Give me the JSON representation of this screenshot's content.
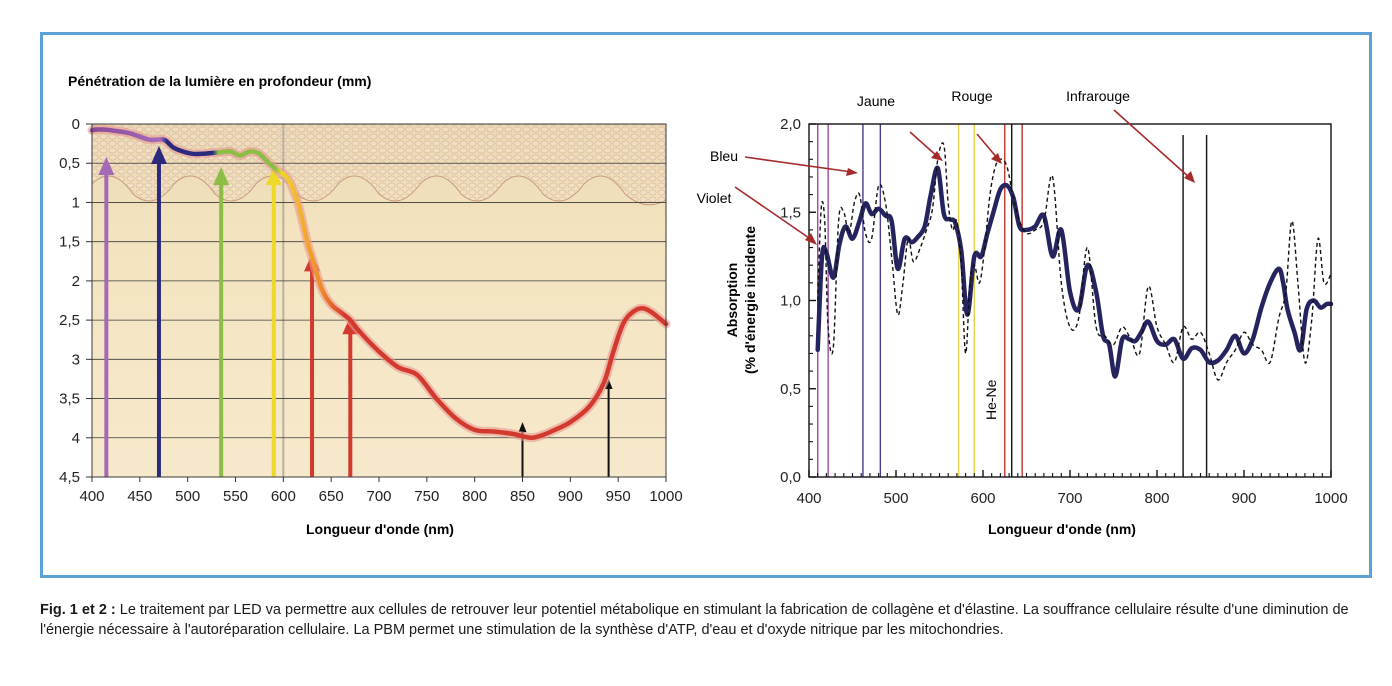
{
  "chart_data": [
    {
      "type": "line",
      "title": "Pénétration de la lumière en profondeur (mm)",
      "xlabel": "Longueur d'onde (nm)",
      "ylabel": "",
      "xlim": [
        400,
        1000
      ],
      "ylim": [
        0,
        4.5
      ],
      "y_inverted": true,
      "grid": true,
      "x_ticks": [
        "400",
        "450",
        "500",
        "550",
        "600",
        "650",
        "700",
        "750",
        "800",
        "850",
        "900",
        "950",
        "1000"
      ],
      "y_ticks": [
        "0",
        "0,5",
        "1",
        "1,5",
        "2",
        "2,5",
        "3",
        "3,5",
        "4",
        "4,5"
      ],
      "series": [
        {
          "x": [
            400,
            405,
            410,
            420,
            440,
            460,
            475,
            485,
            495,
            505,
            515,
            525,
            535,
            545,
            555,
            565,
            575,
            585,
            595,
            605,
            615,
            625,
            630,
            640,
            650,
            660,
            670,
            680,
            700,
            720,
            740,
            760,
            780,
            800,
            820,
            840,
            850,
            860,
            870,
            880,
            900,
            920,
            935,
            945,
            955,
            965,
            975,
            985,
            1000
          ],
          "y": [
            0.08,
            0.07,
            0.07,
            0.08,
            0.12,
            0.2,
            0.2,
            0.3,
            0.35,
            0.38,
            0.38,
            0.37,
            0.36,
            0.35,
            0.4,
            0.35,
            0.38,
            0.5,
            0.6,
            0.7,
            1.0,
            1.5,
            1.7,
            2.1,
            2.3,
            2.4,
            2.5,
            2.65,
            2.9,
            3.1,
            3.2,
            3.5,
            3.75,
            3.9,
            3.92,
            3.95,
            3.98,
            4.0,
            3.97,
            3.92,
            3.8,
            3.6,
            3.3,
            2.9,
            2.55,
            2.4,
            2.35,
            2.4,
            2.55
          ]
        }
      ],
      "arrows": [
        {
          "x": 415,
          "depth": 0.42,
          "color": "#a46ab7"
        },
        {
          "x": 470,
          "depth": 0.28,
          "color": "#2b2a7f"
        },
        {
          "x": 535,
          "depth": 0.55,
          "color": "#8cbd45"
        },
        {
          "x": 590,
          "depth": 0.55,
          "color": "#ecd92a"
        },
        {
          "x": 630,
          "depth": 1.65,
          "color": "#d33a2e"
        },
        {
          "x": 670,
          "depth": 2.45,
          "color": "#d33a2e"
        },
        {
          "x": 850,
          "depth": 3.8,
          "color": "#111111"
        },
        {
          "x": 940,
          "depth": 3.25,
          "color": "#111111"
        }
      ]
    },
    {
      "type": "line",
      "title": "",
      "xlabel": "Longueur d'onde (nm)",
      "ylabel": "Absorption",
      "ylabel2": "(% d'énergie incidente",
      "xlim": [
        400,
        1000
      ],
      "ylim": [
        0,
        2
      ],
      "x_ticks": [
        "400",
        "500",
        "600",
        "700",
        "800",
        "900",
        "1000"
      ],
      "y_ticks": [
        "0,0",
        "0,5",
        "1,0",
        "1,5",
        "2,0"
      ],
      "series": [
        {
          "style": "solid",
          "x": [
            410,
            415,
            420,
            428,
            435,
            442,
            450,
            458,
            465,
            472,
            480,
            488,
            495,
            502,
            510,
            518,
            525,
            533,
            540,
            548,
            555,
            562,
            568,
            575,
            582,
            590,
            598,
            605,
            612,
            620,
            628,
            635,
            642,
            650,
            660,
            670,
            680,
            690,
            700,
            710,
            720,
            730,
            738,
            745,
            752,
            760,
            768,
            775,
            782,
            790,
            800,
            810,
            820,
            830,
            840,
            850,
            860,
            870,
            880,
            890,
            900,
            910,
            920,
            930,
            940,
            945,
            950,
            958,
            965,
            972,
            980,
            988,
            995,
            1000
          ],
          "y": [
            0.72,
            1.25,
            1.27,
            1.13,
            1.32,
            1.42,
            1.35,
            1.45,
            1.55,
            1.49,
            1.52,
            1.48,
            1.45,
            1.18,
            1.35,
            1.33,
            1.36,
            1.42,
            1.6,
            1.75,
            1.49,
            1.46,
            1.44,
            1.28,
            0.92,
            1.25,
            1.25,
            1.38,
            1.5,
            1.63,
            1.65,
            1.58,
            1.42,
            1.4,
            1.42,
            1.48,
            1.25,
            1.4,
            1.05,
            0.95,
            1.2,
            1.05,
            0.8,
            0.75,
            0.57,
            0.78,
            0.78,
            0.77,
            0.82,
            0.88,
            0.77,
            0.75,
            0.78,
            0.67,
            0.73,
            0.72,
            0.65,
            0.66,
            0.72,
            0.8,
            0.7,
            0.78,
            0.96,
            1.1,
            1.18,
            1.1,
            0.95,
            0.82,
            0.72,
            0.95,
            1.0,
            0.96,
            0.98,
            0.98
          ]
        },
        {
          "style": "dashed",
          "x": [
            410,
            414,
            418,
            422,
            428,
            434,
            440,
            446,
            452,
            458,
            465,
            472,
            480,
            488,
            495,
            502,
            508,
            514,
            520,
            528,
            535,
            542,
            548,
            555,
            560,
            565,
            570,
            575,
            580,
            585,
            590,
            596,
            602,
            608,
            615,
            622,
            628,
            635,
            642,
            650,
            660,
            670,
            680,
            690,
            700,
            710,
            720,
            730,
            740,
            750,
            760,
            770,
            780,
            790,
            800,
            810,
            820,
            830,
            840,
            850,
            860,
            870,
            880,
            890,
            900,
            910,
            920,
            930,
            940,
            948,
            955,
            962,
            970,
            978,
            985,
            992,
            1000
          ],
          "y": [
            1.0,
            1.52,
            1.45,
            0.85,
            0.74,
            1.45,
            1.5,
            1.38,
            1.55,
            1.6,
            1.38,
            1.35,
            1.65,
            1.55,
            1.25,
            0.92,
            1.1,
            1.35,
            1.22,
            1.3,
            1.4,
            1.52,
            1.8,
            1.88,
            1.55,
            1.4,
            1.45,
            1.2,
            0.7,
            1.1,
            1.2,
            1.1,
            1.3,
            1.6,
            1.77,
            1.8,
            1.75,
            1.58,
            1.45,
            1.38,
            1.4,
            1.45,
            1.7,
            1.1,
            0.85,
            0.9,
            1.3,
            0.85,
            0.8,
            0.75,
            0.85,
            0.78,
            0.7,
            1.08,
            0.85,
            0.75,
            0.65,
            0.85,
            0.78,
            0.82,
            0.7,
            0.55,
            0.65,
            0.72,
            0.82,
            0.75,
            0.72,
            0.65,
            0.9,
            1.05,
            1.45,
            1.1,
            0.65,
            0.9,
            1.35,
            1.1,
            1.15
          ]
        }
      ],
      "vlines": [
        {
          "x": 410,
          "color": "#a14aa5"
        },
        {
          "x": 422,
          "color": "#a14aa5"
        },
        {
          "x": 462,
          "color": "#4a3c93"
        },
        {
          "x": 482,
          "color": "#4a3c93"
        },
        {
          "x": 572,
          "color": "#e3d34a"
        },
        {
          "x": 590,
          "color": "#e3d34a"
        },
        {
          "x": 625,
          "color": "#c0392b"
        },
        {
          "x": 633,
          "color": "#111111"
        },
        {
          "x": 645,
          "color": "#c0392b"
        },
        {
          "x": 830,
          "color": "#111111"
        },
        {
          "x": 857,
          "color": "#111111"
        }
      ],
      "annotations": [
        "Jaune",
        "Rouge",
        "Infrarouge",
        "Bleu",
        "Violet",
        "He-Ne"
      ]
    }
  ],
  "caption": {
    "label": "Fig. 1 et 2 :",
    "text": " Le traitement par LED va permettre aux cellules de retrouver leur potentiel métabolique en stimulant la fabrication de collagène et d'élastine. La souffrance cellulaire résulte d'une diminution de l'énergie nécessaire à l'autoréparation cellulaire. La PBM permet une stimulation de la synthèse d'ATP, d'eau et d'oxyde nitrique par les mitochondries."
  }
}
